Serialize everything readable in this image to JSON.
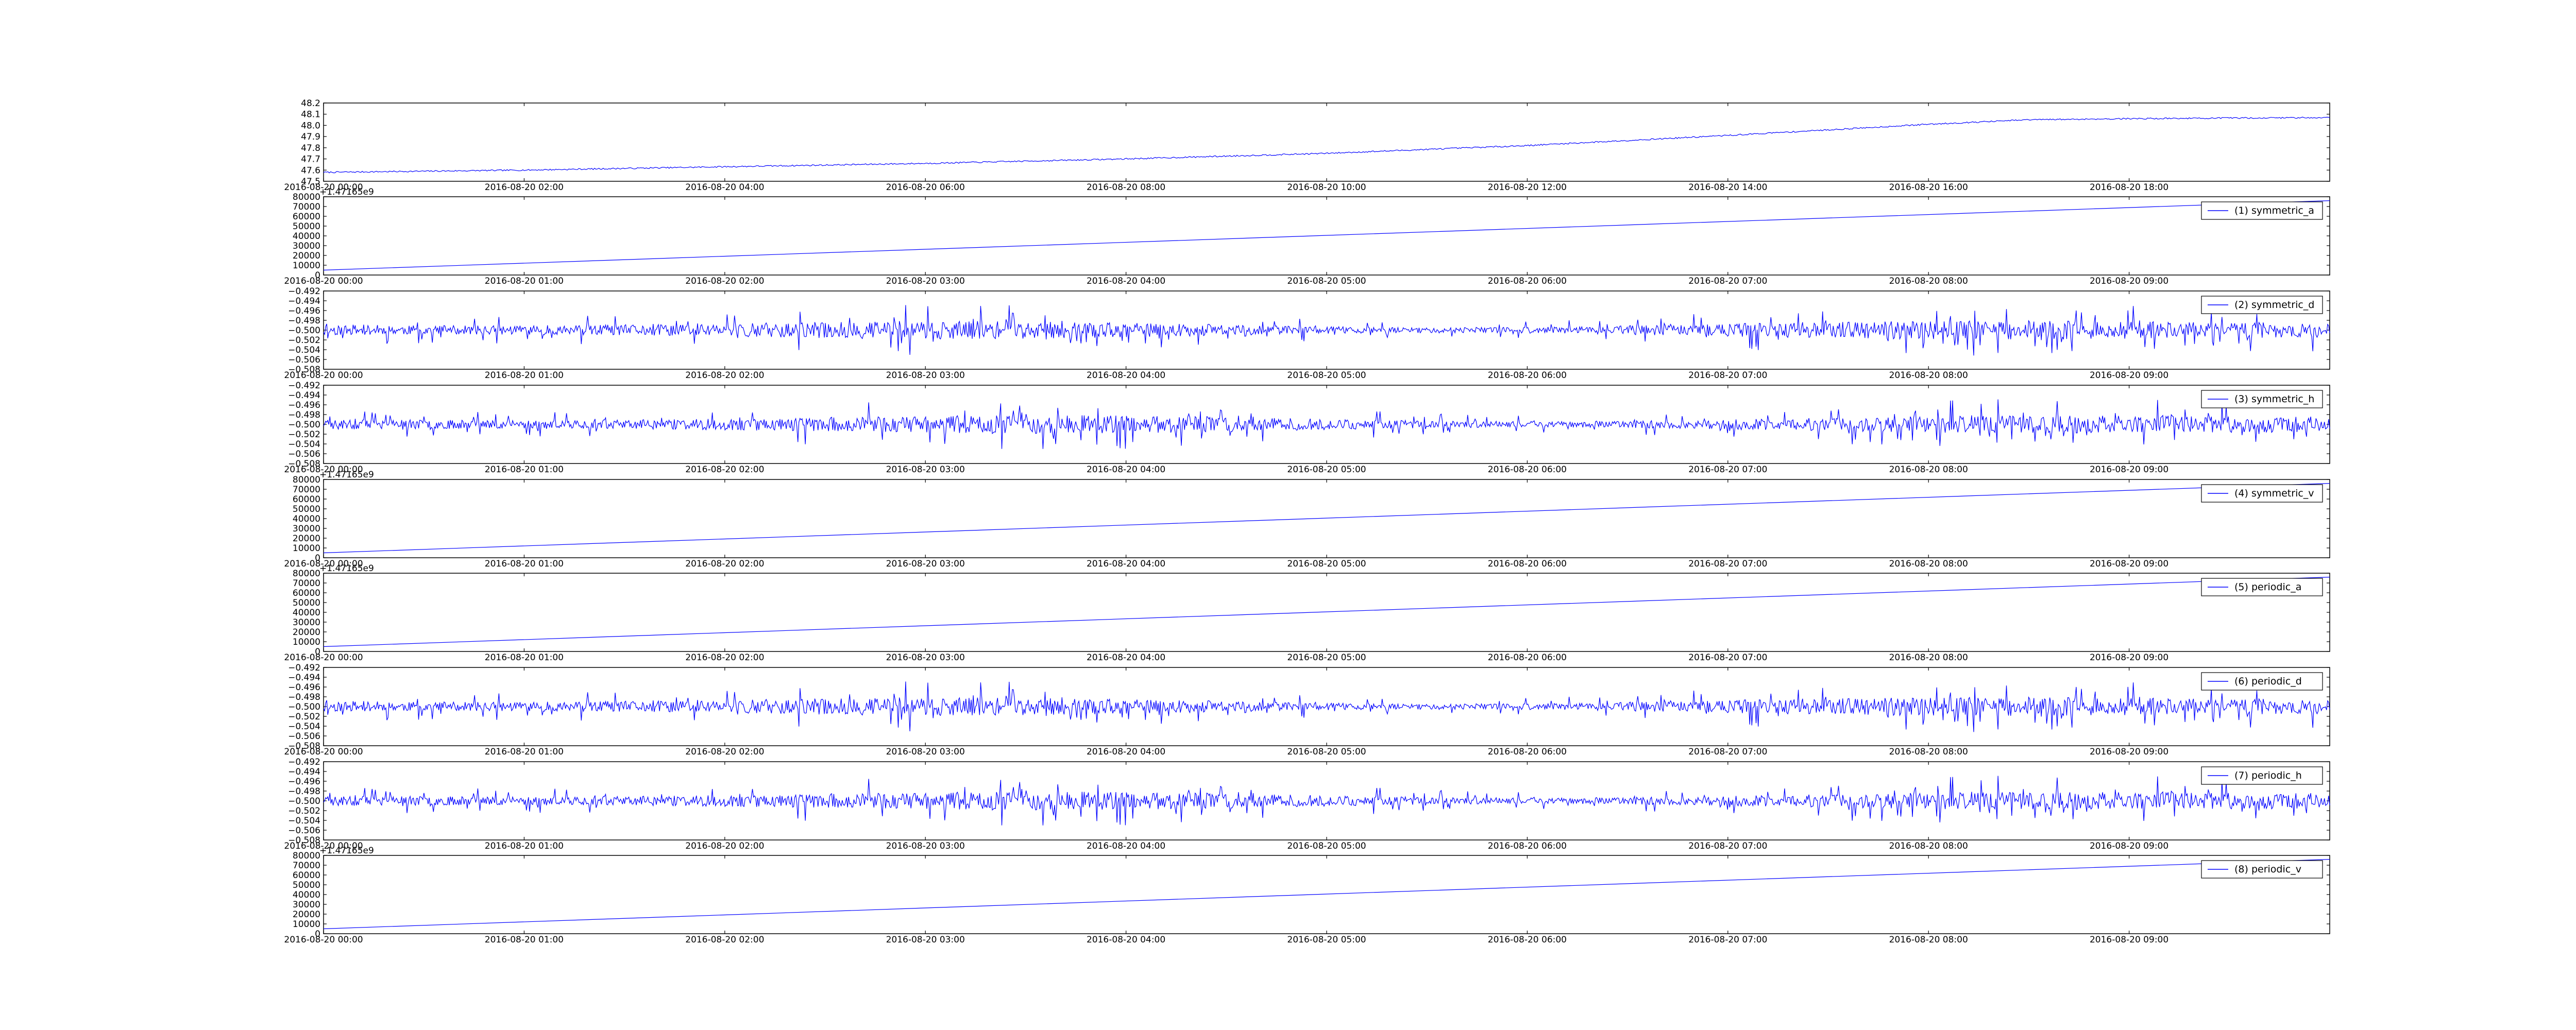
{
  "colors": {
    "line": "#0000ff",
    "axes": "#000000",
    "background": "#ffffff"
  },
  "chart_data": [
    {
      "type": "line",
      "title": "",
      "xlabel": "",
      "ylabel": "",
      "x_type": "datetime",
      "xlim": [
        "2016-08-20 00:00",
        "2016-08-20 20:00"
      ],
      "x_ticks": [
        "2016-08-20 00:00",
        "2016-08-20 02:00",
        "2016-08-20 04:00",
        "2016-08-20 06:00",
        "2016-08-20 08:00",
        "2016-08-20 10:00",
        "2016-08-20 12:00",
        "2016-08-20 14:00",
        "2016-08-20 16:00",
        "2016-08-20 18:00"
      ],
      "ylim": [
        47.5,
        48.2
      ],
      "y_ticks": [
        "47.5",
        "47.6",
        "47.7",
        "47.8",
        "47.9",
        "48.0",
        "48.1",
        "48.2"
      ],
      "y_offset_label": "",
      "legend": "",
      "grid": false,
      "series": [
        {
          "name": "",
          "pattern": "trend-with-ripple",
          "x": [
            "2016-08-20 00:00",
            "2016-08-20 02:00",
            "2016-08-20 04:00",
            "2016-08-20 06:00",
            "2016-08-20 08:00",
            "2016-08-20 10:00",
            "2016-08-20 12:00",
            "2016-08-20 14:00",
            "2016-08-20 16:00",
            "2016-08-20 17:00",
            "2016-08-20 18:00",
            "2016-08-20 20:00"
          ],
          "y": [
            47.58,
            47.6,
            47.63,
            47.66,
            47.7,
            47.75,
            47.82,
            47.91,
            48.01,
            48.05,
            48.06,
            48.07
          ]
        }
      ]
    },
    {
      "type": "line",
      "title": "",
      "xlabel": "",
      "ylabel": "",
      "x_type": "datetime",
      "xlim": [
        "2016-08-20 00:00",
        "2016-08-20 10:00"
      ],
      "x_ticks": [
        "2016-08-20 00:00",
        "2016-08-20 01:00",
        "2016-08-20 02:00",
        "2016-08-20 03:00",
        "2016-08-20 04:00",
        "2016-08-20 05:00",
        "2016-08-20 06:00",
        "2016-08-20 07:00",
        "2016-08-20 08:00",
        "2016-08-20 09:00"
      ],
      "ylim": [
        0,
        80000
      ],
      "y_ticks": [
        "0",
        "10000",
        "20000",
        "30000",
        "40000",
        "50000",
        "60000",
        "70000",
        "80000"
      ],
      "y_offset_label": "+1.47165e9",
      "legend": "right",
      "grid": false,
      "series": [
        {
          "name": "(1) symmetric_a",
          "pattern": "line",
          "x": [
            "2016-08-20 00:00",
            "2016-08-20 10:00"
          ],
          "y": [
            5000,
            76000
          ]
        }
      ]
    },
    {
      "type": "line",
      "title": "",
      "xlabel": "",
      "ylabel": "",
      "x_type": "datetime",
      "xlim": [
        "2016-08-20 00:00",
        "2016-08-20 10:00"
      ],
      "x_ticks": [
        "2016-08-20 00:00",
        "2016-08-20 01:00",
        "2016-08-20 02:00",
        "2016-08-20 03:00",
        "2016-08-20 04:00",
        "2016-08-20 05:00",
        "2016-08-20 06:00",
        "2016-08-20 07:00",
        "2016-08-20 08:00",
        "2016-08-20 09:00"
      ],
      "ylim": [
        -0.508,
        -0.492
      ],
      "y_ticks": [
        "−0.508",
        "−0.506",
        "−0.504",
        "−0.502",
        "−0.500",
        "−0.498",
        "−0.496",
        "−0.494",
        "−0.492"
      ],
      "y_offset_label": "",
      "legend": "right",
      "grid": false,
      "series": [
        {
          "name": "(2) symmetric_d",
          "pattern": "noise",
          "center": -0.5,
          "amplitude": 0.005,
          "seed": 11
        }
      ]
    },
    {
      "type": "line",
      "title": "",
      "xlabel": "",
      "ylabel": "",
      "x_type": "datetime",
      "xlim": [
        "2016-08-20 00:00",
        "2016-08-20 10:00"
      ],
      "x_ticks": [
        "2016-08-20 00:00",
        "2016-08-20 01:00",
        "2016-08-20 02:00",
        "2016-08-20 03:00",
        "2016-08-20 04:00",
        "2016-08-20 05:00",
        "2016-08-20 06:00",
        "2016-08-20 07:00",
        "2016-08-20 08:00",
        "2016-08-20 09:00"
      ],
      "ylim": [
        -0.508,
        -0.492
      ],
      "y_ticks": [
        "−0.508",
        "−0.506",
        "−0.504",
        "−0.502",
        "−0.500",
        "−0.498",
        "−0.496",
        "−0.494",
        "−0.492"
      ],
      "y_offset_label": "",
      "legend": "right",
      "grid": false,
      "series": [
        {
          "name": "(3) symmetric_h",
          "pattern": "noise",
          "center": -0.5,
          "amplitude": 0.005,
          "seed": 23
        }
      ]
    },
    {
      "type": "line",
      "title": "",
      "xlabel": "",
      "ylabel": "",
      "x_type": "datetime",
      "xlim": [
        "2016-08-20 00:00",
        "2016-08-20 10:00"
      ],
      "x_ticks": [
        "2016-08-20 00:00",
        "2016-08-20 01:00",
        "2016-08-20 02:00",
        "2016-08-20 03:00",
        "2016-08-20 04:00",
        "2016-08-20 05:00",
        "2016-08-20 06:00",
        "2016-08-20 07:00",
        "2016-08-20 08:00",
        "2016-08-20 09:00"
      ],
      "ylim": [
        0,
        80000
      ],
      "y_ticks": [
        "0",
        "10000",
        "20000",
        "30000",
        "40000",
        "50000",
        "60000",
        "70000",
        "80000"
      ],
      "y_offset_label": "+1.47165e9",
      "legend": "right",
      "grid": false,
      "series": [
        {
          "name": "(4) symmetric_v",
          "pattern": "line",
          "x": [
            "2016-08-20 00:00",
            "2016-08-20 10:00"
          ],
          "y": [
            5000,
            76000
          ]
        }
      ]
    },
    {
      "type": "line",
      "title": "",
      "xlabel": "",
      "ylabel": "",
      "x_type": "datetime",
      "xlim": [
        "2016-08-20 00:00",
        "2016-08-20 10:00"
      ],
      "x_ticks": [
        "2016-08-20 00:00",
        "2016-08-20 01:00",
        "2016-08-20 02:00",
        "2016-08-20 03:00",
        "2016-08-20 04:00",
        "2016-08-20 05:00",
        "2016-08-20 06:00",
        "2016-08-20 07:00",
        "2016-08-20 08:00",
        "2016-08-20 09:00"
      ],
      "ylim": [
        0,
        80000
      ],
      "y_ticks": [
        "0",
        "10000",
        "20000",
        "30000",
        "40000",
        "50000",
        "60000",
        "70000",
        "80000"
      ],
      "y_offset_label": "+1.47165e9",
      "legend": "right",
      "grid": false,
      "series": [
        {
          "name": "(5) periodic_a",
          "pattern": "line",
          "x": [
            "2016-08-20 00:00",
            "2016-08-20 10:00"
          ],
          "y": [
            5000,
            76000
          ]
        }
      ]
    },
    {
      "type": "line",
      "title": "",
      "xlabel": "",
      "ylabel": "",
      "x_type": "datetime",
      "xlim": [
        "2016-08-20 00:00",
        "2016-08-20 10:00"
      ],
      "x_ticks": [
        "2016-08-20 00:00",
        "2016-08-20 01:00",
        "2016-08-20 02:00",
        "2016-08-20 03:00",
        "2016-08-20 04:00",
        "2016-08-20 05:00",
        "2016-08-20 06:00",
        "2016-08-20 07:00",
        "2016-08-20 08:00",
        "2016-08-20 09:00"
      ],
      "ylim": [
        -0.508,
        -0.492
      ],
      "y_ticks": [
        "−0.508",
        "−0.506",
        "−0.504",
        "−0.502",
        "−0.500",
        "−0.498",
        "−0.496",
        "−0.494",
        "−0.492"
      ],
      "y_offset_label": "",
      "legend": "right",
      "grid": false,
      "series": [
        {
          "name": "(6) periodic_d",
          "pattern": "noise",
          "center": -0.5,
          "amplitude": 0.005,
          "seed": 11
        }
      ]
    },
    {
      "type": "line",
      "title": "",
      "xlabel": "",
      "ylabel": "",
      "x_type": "datetime",
      "xlim": [
        "2016-08-20 00:00",
        "2016-08-20 10:00"
      ],
      "x_ticks": [
        "2016-08-20 00:00",
        "2016-08-20 01:00",
        "2016-08-20 02:00",
        "2016-08-20 03:00",
        "2016-08-20 04:00",
        "2016-08-20 05:00",
        "2016-08-20 06:00",
        "2016-08-20 07:00",
        "2016-08-20 08:00",
        "2016-08-20 09:00"
      ],
      "ylim": [
        -0.508,
        -0.492
      ],
      "y_ticks": [
        "−0.508",
        "−0.506",
        "−0.504",
        "−0.502",
        "−0.500",
        "−0.498",
        "−0.496",
        "−0.494",
        "−0.492"
      ],
      "y_offset_label": "",
      "legend": "right",
      "grid": false,
      "series": [
        {
          "name": "(7) periodic_h",
          "pattern": "noise",
          "center": -0.5,
          "amplitude": 0.005,
          "seed": 23
        }
      ]
    },
    {
      "type": "line",
      "title": "",
      "xlabel": "",
      "ylabel": "",
      "x_type": "datetime",
      "xlim": [
        "2016-08-20 00:00",
        "2016-08-20 10:00"
      ],
      "x_ticks": [
        "2016-08-20 00:00",
        "2016-08-20 01:00",
        "2016-08-20 02:00",
        "2016-08-20 03:00",
        "2016-08-20 04:00",
        "2016-08-20 05:00",
        "2016-08-20 06:00",
        "2016-08-20 07:00",
        "2016-08-20 08:00",
        "2016-08-20 09:00"
      ],
      "ylim": [
        0,
        80000
      ],
      "y_ticks": [
        "0",
        "10000",
        "20000",
        "30000",
        "40000",
        "50000",
        "60000",
        "70000",
        "80000"
      ],
      "y_offset_label": "+1.47165e9",
      "legend": "right",
      "grid": false,
      "series": [
        {
          "name": "(8) periodic_v",
          "pattern": "line",
          "x": [
            "2016-08-20 00:00",
            "2016-08-20 10:00"
          ],
          "y": [
            5000,
            76000
          ]
        }
      ]
    }
  ]
}
